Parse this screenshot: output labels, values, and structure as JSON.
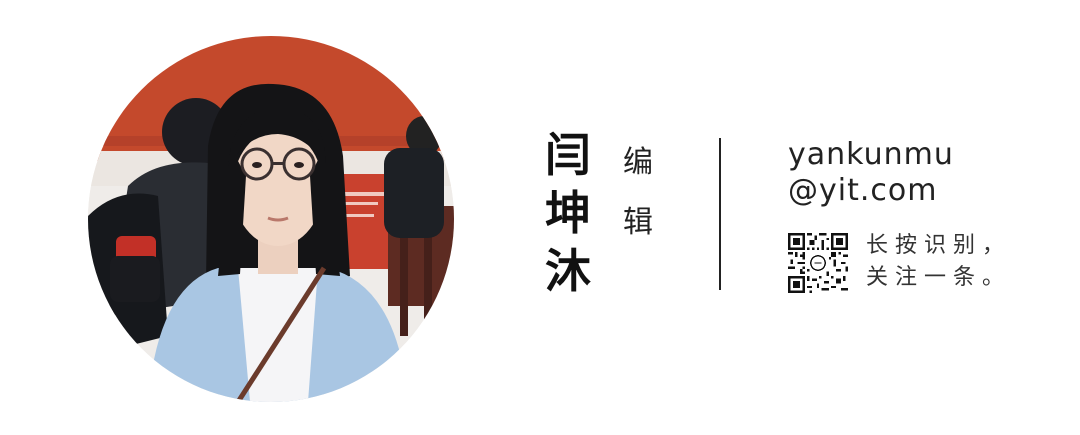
{
  "editor": {
    "name_chars": [
      "闫",
      "坤",
      "沐"
    ],
    "role_chars": [
      "编",
      "辑"
    ],
    "email_line1": "yankunmu",
    "email_line2": "@yit.com"
  },
  "qr": {
    "icon": "qr-code-icon",
    "caption_line1": "长按识别，",
    "caption_line2": "关注一条。"
  },
  "colors": {
    "wall": "#c4492c",
    "coat": "#a9c6e3",
    "text": "#111111"
  }
}
